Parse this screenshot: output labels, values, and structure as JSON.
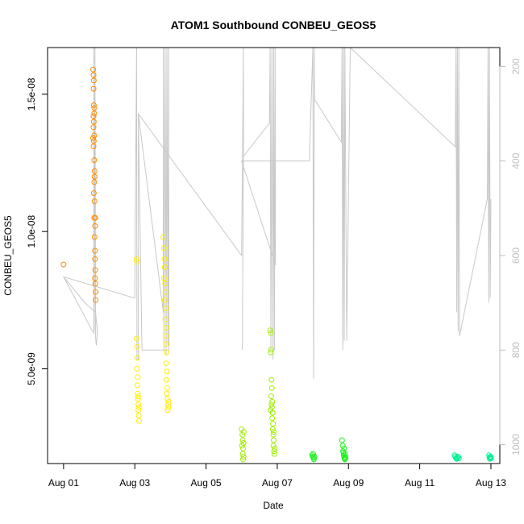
{
  "chart_data": {
    "type": "scatter",
    "title": "ATOM1 Southbound CONBEU_GEOS5",
    "xlabel": "Date",
    "ylabel": "CONBEU_GEOS5",
    "x_ticks": [
      "Aug 01",
      "Aug 03",
      "Aug 05",
      "Aug 07",
      "Aug 09",
      "Aug 11",
      "Aug 13"
    ],
    "x_tick_days": [
      1,
      3,
      5,
      7,
      9,
      11,
      13
    ],
    "y_ticks": [
      "5.0e-09",
      "1.0e-08",
      "1.5e-08"
    ],
    "y_tick_values": [
      5e-09,
      1e-08,
      1.5e-08
    ],
    "y2_ticks": [
      "200",
      "400",
      "600",
      "800",
      "1000"
    ],
    "y2_tick_values": [
      200,
      400,
      600,
      800,
      1000
    ],
    "xlim_days": [
      0.55,
      13.25
    ],
    "ylim": [
      1.55e-09,
      1.67e-08
    ],
    "y2lim": [
      1040,
      160
    ],
    "right_axis_color": "#bebebe",
    "pressure_line_color": "#c8c8c8",
    "series": [
      {
        "color": "#ff8c00",
        "points": [
          [
            1.0,
            8.8e-09
          ],
          [
            1.83,
            1.59e-08
          ],
          [
            1.84,
            1.57e-08
          ],
          [
            1.85,
            1.55e-08
          ],
          [
            1.84,
            1.52e-08
          ],
          [
            1.85,
            1.46e-08
          ],
          [
            1.86,
            1.43e-08
          ],
          [
            1.85,
            1.4e-08
          ],
          [
            1.84,
            1.38e-08
          ],
          [
            1.86,
            1.35e-08
          ],
          [
            1.85,
            1.33e-08
          ],
          [
            1.84,
            1.31e-08
          ],
          [
            1.86,
            1.26e-08
          ],
          [
            1.87,
            1.22e-08
          ],
          [
            1.86,
            1.18e-08
          ],
          [
            1.85,
            1.14e-08
          ],
          [
            1.87,
            1.11e-08
          ],
          [
            1.86,
            1.05e-08
          ],
          [
            1.88,
            1.02e-08
          ],
          [
            1.87,
            9.8e-09
          ],
          [
            1.88,
            9.3e-09
          ],
          [
            1.88,
            9e-09
          ],
          [
            1.89,
            8.6e-09
          ],
          [
            1.88,
            8.3e-09
          ],
          [
            1.89,
            8.1e-09
          ],
          [
            1.9,
            7.8e-09
          ],
          [
            1.9,
            7.5e-09
          ],
          [
            1.83,
            1.34e-08
          ],
          [
            1.87,
            1.2e-08
          ],
          [
            1.89,
            1.05e-08
          ],
          [
            1.86,
            1.45e-08
          ],
          [
            1.84,
            1.42e-08
          ]
        ]
      },
      {
        "color": "#ffee00",
        "points": [
          [
            3.05,
            9e-09
          ],
          [
            3.06,
            8.9e-09
          ],
          [
            3.05,
            6.1e-09
          ],
          [
            3.06,
            5.8e-09
          ],
          [
            3.07,
            5.4e-09
          ],
          [
            3.06,
            5e-09
          ],
          [
            3.08,
            4.7e-09
          ],
          [
            3.07,
            4.4e-09
          ],
          [
            3.08,
            4.1e-09
          ],
          [
            3.09,
            3.9e-09
          ],
          [
            3.1,
            3.7e-09
          ],
          [
            3.1,
            3.5e-09
          ],
          [
            3.11,
            3.3e-09
          ],
          [
            3.12,
            3.1e-09
          ],
          [
            3.09,
            4e-09
          ],
          [
            3.11,
            3.6e-09
          ],
          [
            3.8,
            9.8e-09
          ],
          [
            3.82,
            9.4e-09
          ],
          [
            3.83,
            9e-09
          ],
          [
            3.84,
            8.7e-09
          ],
          [
            3.82,
            8.3e-09
          ],
          [
            3.85,
            8.1e-09
          ],
          [
            3.86,
            7.8e-09
          ],
          [
            3.84,
            7.5e-09
          ],
          [
            3.87,
            7.2e-09
          ],
          [
            3.86,
            6.8e-09
          ],
          [
            3.88,
            6.5e-09
          ],
          [
            3.87,
            6.2e-09
          ],
          [
            3.88,
            5.9e-09
          ],
          [
            3.89,
            5.6e-09
          ],
          [
            3.88,
            5.2e-09
          ],
          [
            3.9,
            4.9e-09
          ],
          [
            3.89,
            4.6e-09
          ],
          [
            3.91,
            4.3e-09
          ],
          [
            3.9,
            4.1e-09
          ],
          [
            3.92,
            3.9e-09
          ],
          [
            3.93,
            3.7e-09
          ],
          [
            3.92,
            3.5e-09
          ],
          [
            3.94,
            3.6e-09
          ],
          [
            3.95,
            3.8e-09
          ]
        ]
      },
      {
        "color": "#a0f000",
        "points": [
          [
            6.0,
            2.8e-09
          ],
          [
            6.02,
            2.6e-09
          ],
          [
            6.03,
            2.4e-09
          ],
          [
            6.01,
            2.2e-09
          ],
          [
            6.04,
            2.1e-09
          ],
          [
            6.03,
            1.9e-09
          ],
          [
            6.05,
            1.8e-09
          ],
          [
            6.04,
            1.7e-09
          ],
          [
            6.06,
            2.7e-09
          ],
          [
            6.05,
            2.3e-09
          ],
          [
            6.8,
            6.4e-09
          ],
          [
            6.82,
            6.3e-09
          ],
          [
            6.83,
            5.7e-09
          ],
          [
            6.82,
            5.6e-09
          ],
          [
            6.84,
            4.6e-09
          ],
          [
            6.85,
            4.3e-09
          ],
          [
            6.83,
            4e-09
          ],
          [
            6.86,
            3.8e-09
          ],
          [
            6.85,
            3.6e-09
          ],
          [
            6.87,
            3.4e-09
          ],
          [
            6.86,
            3.2e-09
          ],
          [
            6.88,
            3e-09
          ],
          [
            6.87,
            2.8e-09
          ],
          [
            6.89,
            2.6e-09
          ],
          [
            6.9,
            2.4e-09
          ],
          [
            6.89,
            2.2e-09
          ],
          [
            6.91,
            2e-09
          ],
          [
            6.92,
            1.9e-09
          ],
          [
            6.9,
            2.7e-09
          ],
          [
            6.93,
            2.1e-09
          ],
          [
            6.81,
            3.5e-09
          ],
          [
            6.84,
            3.7e-09
          ]
        ]
      },
      {
        "color": "#20f020",
        "points": [
          [
            7.98,
            1.85e-09
          ],
          [
            8.0,
            1.8e-09
          ],
          [
            8.02,
            1.75e-09
          ],
          [
            8.03,
            1.7e-09
          ],
          [
            8.01,
            1.9e-09
          ],
          [
            8.04,
            1.8e-09
          ],
          [
            8.82,
            2.4e-09
          ],
          [
            8.84,
            2.2e-09
          ],
          [
            8.85,
            2e-09
          ],
          [
            8.86,
            1.95e-09
          ],
          [
            8.87,
            1.85e-09
          ],
          [
            8.88,
            1.8e-09
          ],
          [
            8.89,
            1.75e-09
          ],
          [
            8.9,
            1.7e-09
          ],
          [
            8.91,
            1.72e-09
          ],
          [
            8.92,
            1.78e-09
          ],
          [
            8.88,
            2.1e-09
          ],
          [
            8.9,
            1.9e-09
          ]
        ]
      },
      {
        "color": "#00f090",
        "points": [
          [
            11.98,
            1.85e-09
          ],
          [
            12.0,
            1.8e-09
          ],
          [
            12.02,
            1.75e-09
          ],
          [
            12.04,
            1.72e-09
          ],
          [
            12.06,
            1.76e-09
          ],
          [
            12.08,
            1.8e-09
          ],
          [
            12.1,
            1.74e-09
          ],
          [
            12.95,
            1.85e-09
          ],
          [
            12.96,
            1.78e-09
          ],
          [
            12.97,
            1.72e-09
          ],
          [
            12.98,
            1.76e-09
          ],
          [
            12.99,
            1.8e-09
          ],
          [
            13.0,
            1.74e-09
          ]
        ]
      }
    ],
    "pressure_track": [
      [
        1.0,
        645
      ],
      [
        1.85,
        765
      ],
      [
        1.85,
        160
      ],
      [
        1.86,
        760
      ],
      [
        1.88,
        160
      ],
      [
        1.9,
        775
      ],
      [
        1.92,
        790
      ],
      [
        1.95,
        760
      ],
      [
        1.9,
        720
      ],
      [
        1.6,
        700
      ],
      [
        1.0,
        645
      ],
      [
        3.0,
        690
      ],
      [
        3.05,
        160
      ],
      [
        3.06,
        820
      ],
      [
        3.1,
        820
      ],
      [
        3.1,
        300
      ],
      [
        3.8,
        720
      ],
      [
        3.8,
        160
      ],
      [
        3.82,
        800
      ],
      [
        3.85,
        160
      ],
      [
        3.88,
        810
      ],
      [
        3.9,
        160
      ],
      [
        3.93,
        790
      ],
      [
        3.95,
        160
      ],
      [
        3.96,
        800
      ],
      [
        3.2,
        800
      ],
      [
        3.1,
        300
      ],
      [
        6.0,
        600
      ],
      [
        6.05,
        160
      ],
      [
        6.05,
        390
      ],
      [
        6.02,
        800
      ],
      [
        6.05,
        390
      ],
      [
        6.78,
        320
      ],
      [
        6.8,
        160
      ],
      [
        6.82,
        800
      ],
      [
        6.85,
        160
      ],
      [
        6.88,
        820
      ],
      [
        6.9,
        160
      ],
      [
        6.92,
        800
      ],
      [
        6.94,
        160
      ],
      [
        6.95,
        620
      ],
      [
        6.0,
        400
      ],
      [
        7.9,
        400
      ],
      [
        8.0,
        160
      ],
      [
        8.02,
        860
      ],
      [
        8.04,
        160
      ],
      [
        8.05,
        270
      ],
      [
        8.8,
        360
      ],
      [
        8.82,
        160
      ],
      [
        8.84,
        800
      ],
      [
        8.86,
        160
      ],
      [
        8.88,
        780
      ],
      [
        8.9,
        160
      ],
      [
        8.95,
        780
      ],
      [
        9.05,
        160
      ],
      [
        12.0,
        370
      ],
      [
        12.02,
        160
      ],
      [
        12.04,
        720
      ],
      [
        12.06,
        160
      ],
      [
        12.08,
        760
      ],
      [
        12.1,
        160
      ],
      [
        12.12,
        770
      ],
      [
        12.9,
        480
      ],
      [
        12.92,
        160
      ],
      [
        12.94,
        700
      ],
      [
        12.96,
        160
      ],
      [
        12.98,
        690
      ],
      [
        13.0,
        480
      ]
    ]
  }
}
